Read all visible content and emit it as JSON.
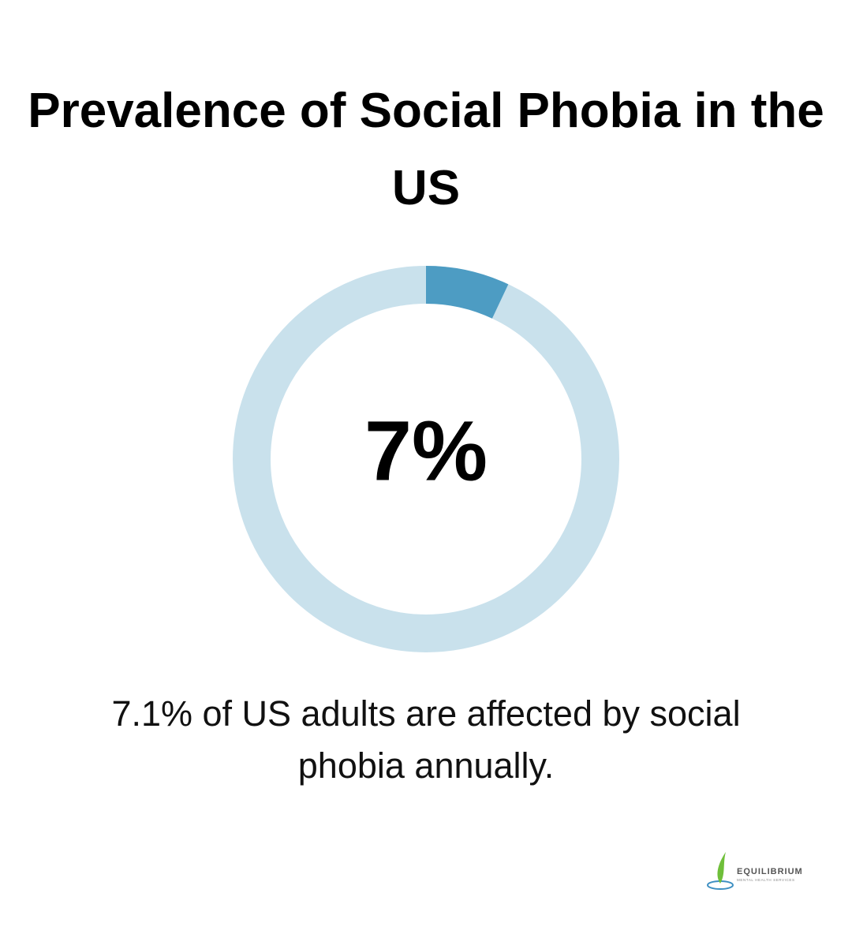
{
  "chart_data": {
    "type": "donut",
    "title": "Prevalence of Social Phobia in the US",
    "values": [
      7
    ],
    "value_labels": [
      "7%"
    ],
    "ylim": [
      0,
      100
    ],
    "color": "#4d9cc3",
    "track_color": "#c9e1ec",
    "caption": "7.1% of US adults are affected by social phobia annually."
  },
  "logo": {
    "name": "EQUILIBRIUM",
    "tagline": "MENTAL HEALTH SERVICES"
  }
}
